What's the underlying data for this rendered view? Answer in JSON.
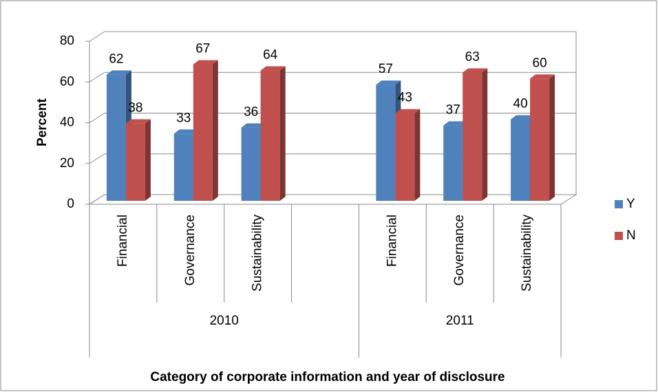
{
  "chart_data": {
    "type": "bar3d",
    "x_label": "Category  of corporate information and year of disclosure",
    "y_label": "Percent",
    "categories": [
      "Financial",
      "Governance",
      "Sustainability",
      null,
      "Financial",
      "Governance",
      "Sustainability"
    ],
    "groups": [
      "2010",
      "2011"
    ],
    "group_spans": [
      4,
      3
    ],
    "series": [
      {
        "name": "Y",
        "color": "#4f81bd",
        "values": [
          62,
          33,
          36,
          null,
          57,
          37,
          40
        ]
      },
      {
        "name": "N",
        "color": "#c0504d",
        "values": [
          38,
          67,
          64,
          null,
          43,
          63,
          60
        ]
      }
    ],
    "ylim": [
      0,
      80
    ],
    "yticks": [
      0,
      20,
      40,
      60,
      80
    ],
    "grid": true,
    "legend": "right"
  }
}
